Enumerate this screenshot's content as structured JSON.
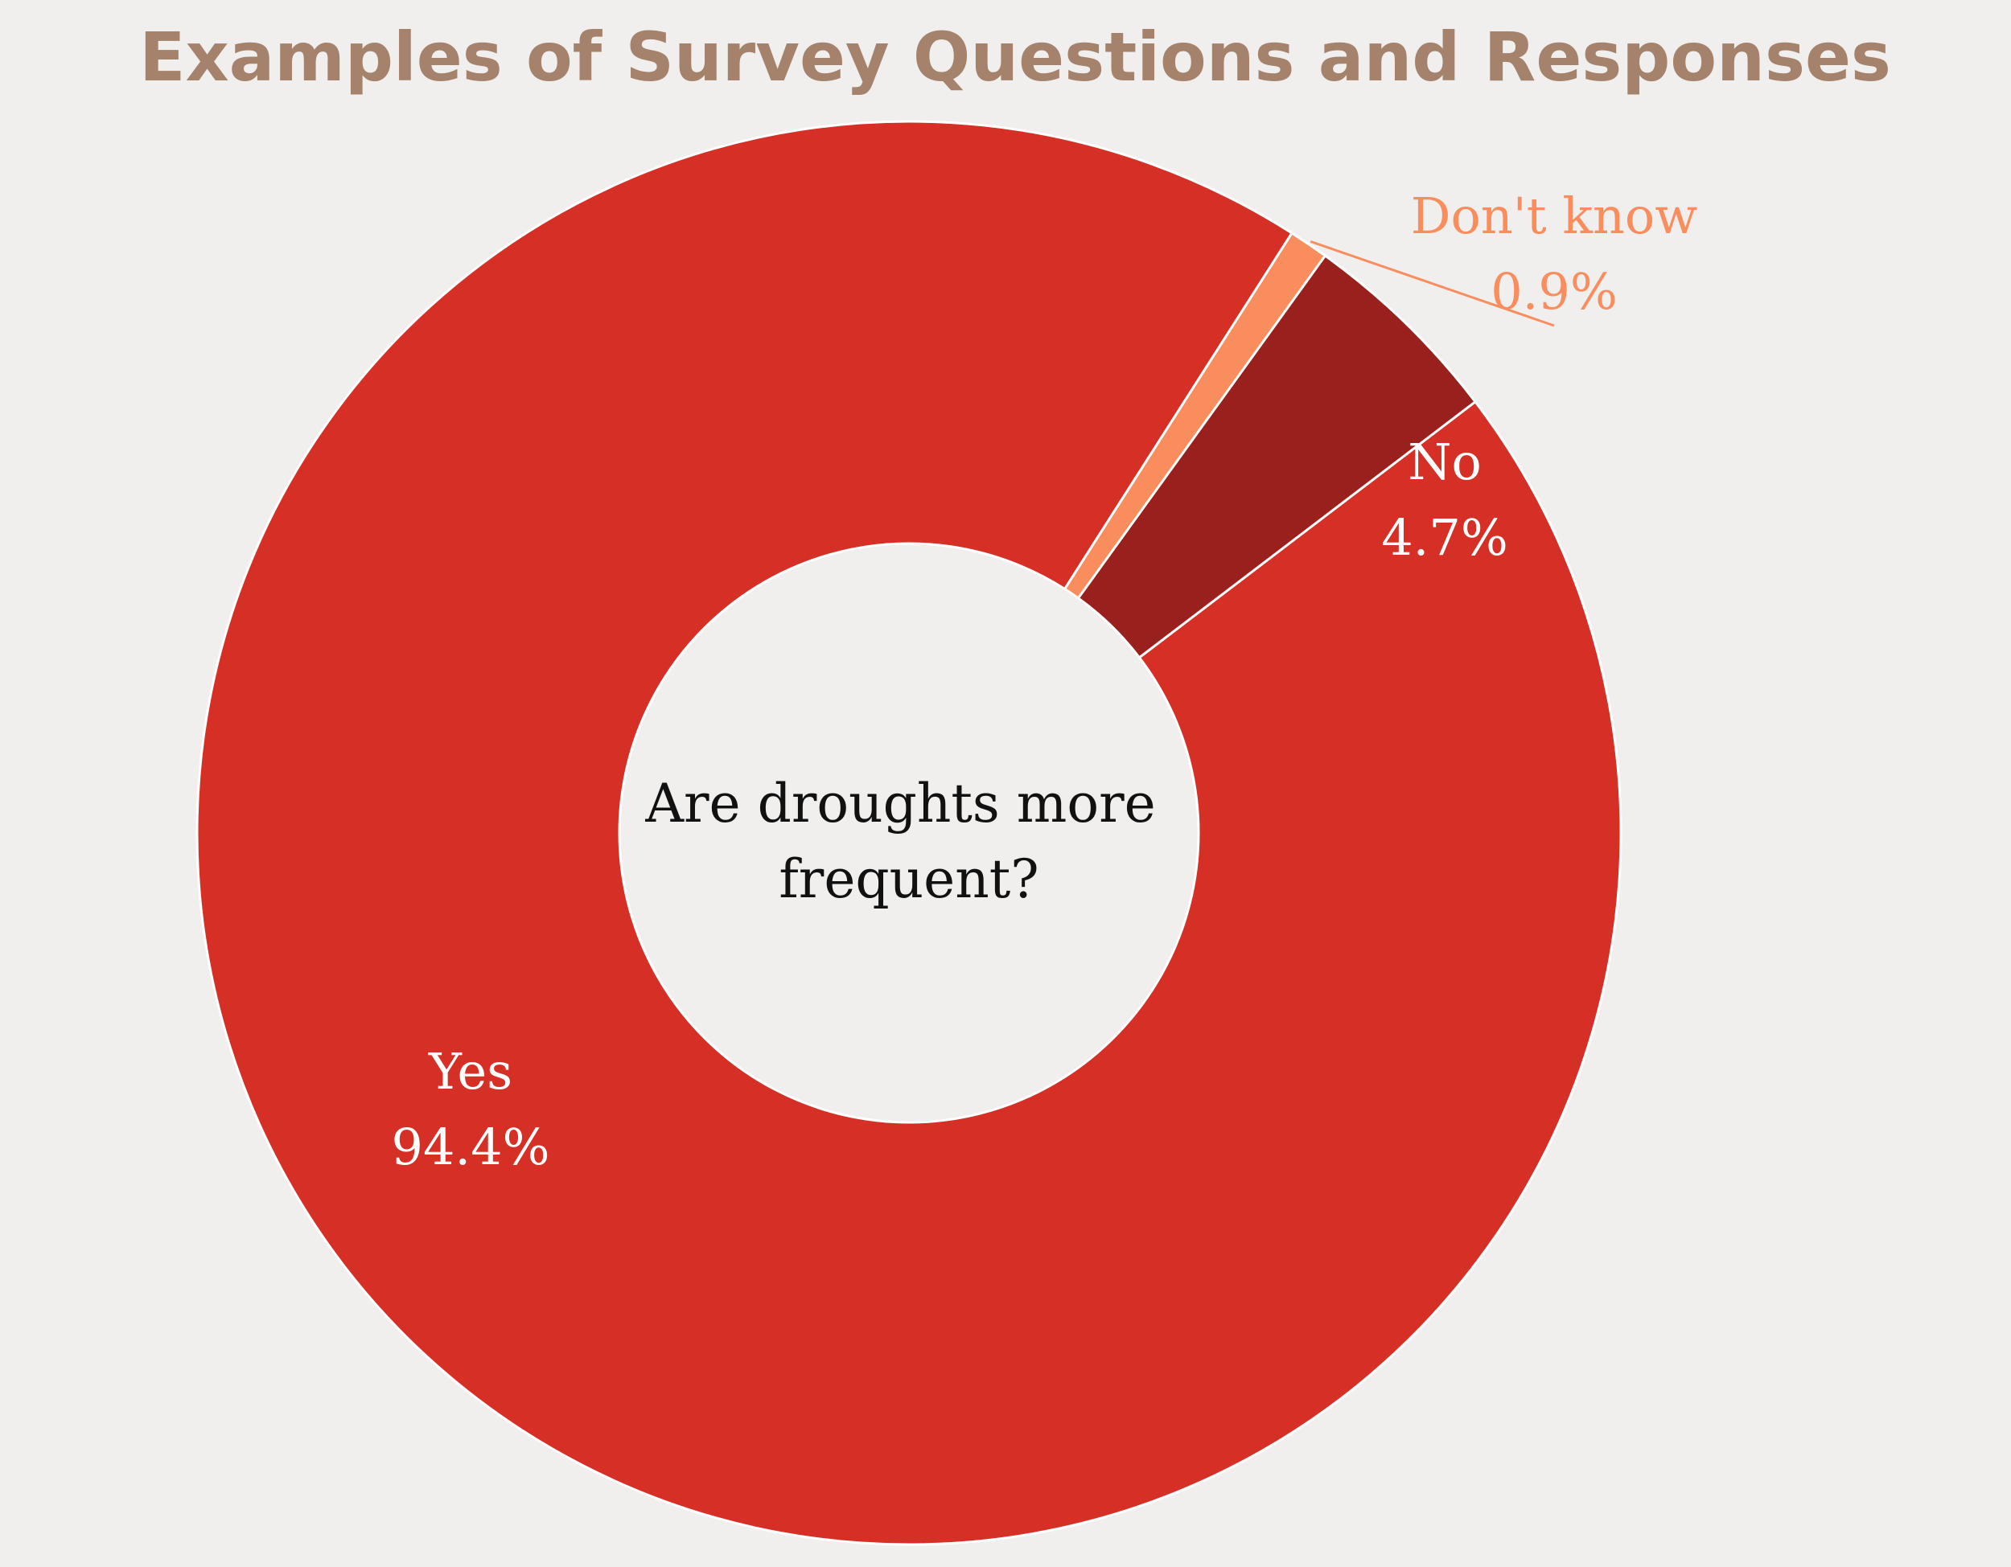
{
  "colors": {
    "background": "#f0efed",
    "title": "#a4826c",
    "center_text": "#111111",
    "label_light": "#ffffff",
    "slice_separator": "#ffffff"
  },
  "chart_data": {
    "type": "pie",
    "variant": "donut",
    "title": "Examples of Survey Questions and Responses",
    "center_label": [
      "Are droughts more",
      "frequent?"
    ],
    "slices": [
      {
        "label": "Yes",
        "value": 94.4,
        "value_label": "94.4%",
        "color": "#d52f26",
        "label_color": "#ffffff",
        "label_placement": "inside"
      },
      {
        "label": "Don't know",
        "value": 0.9,
        "value_label": "0.9%",
        "color": "#f98d5e",
        "label_color": "#f98d5e",
        "label_placement": "outside"
      },
      {
        "label": "No",
        "value": 4.7,
        "value_label": "4.7%",
        "color": "#9a201e",
        "label_color": "#ffffff",
        "label_placement": "inside"
      }
    ],
    "legend": "none"
  }
}
